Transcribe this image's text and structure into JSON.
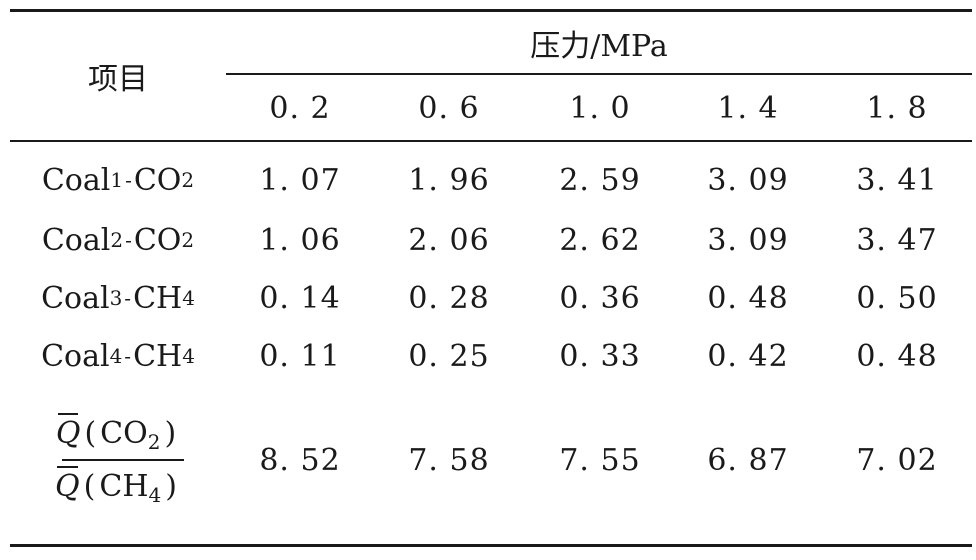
{
  "table": {
    "header": {
      "item_label": "项目",
      "group_label": "压力/MPa",
      "pressures": [
        "0. 2",
        "0. 6",
        "1. 0",
        "1. 4",
        "1. 8"
      ]
    },
    "rows": [
      {
        "coal": "Coal",
        "coal_sub": "1",
        "dash": "-",
        "gas": "CO",
        "gas_sub": "2",
        "values": [
          "1. 07",
          "1. 96",
          "2. 59",
          "3. 09",
          "3. 41"
        ]
      },
      {
        "coal": "Coal",
        "coal_sub": "2",
        "dash": "-",
        "gas": "CO",
        "gas_sub": "2",
        "values": [
          "1. 06",
          "2. 06",
          "2. 62",
          "3. 09",
          "3. 47"
        ]
      },
      {
        "coal": "Coal",
        "coal_sub": "3",
        "dash": "-",
        "gas": "CH",
        "gas_sub": "4",
        "values": [
          "0. 14",
          "0. 28",
          "0. 36",
          "0. 48",
          "0. 50"
        ]
      },
      {
        "coal": "Coal",
        "coal_sub": "4",
        "dash": "-",
        "gas": "CH",
        "gas_sub": "4",
        "values": [
          "0. 11",
          "0. 25",
          "0. 33",
          "0. 42",
          "0. 48"
        ]
      }
    ],
    "ratio_row": {
      "symbol": "Q",
      "numerator_gas": "CO",
      "numerator_sub": "2",
      "denominator_gas": "CH",
      "denominator_sub": "4",
      "open_paren": "(",
      "close_paren": ")",
      "values": [
        "8. 52",
        "7. 58",
        "7. 55",
        "6. 87",
        "7. 02"
      ]
    }
  }
}
